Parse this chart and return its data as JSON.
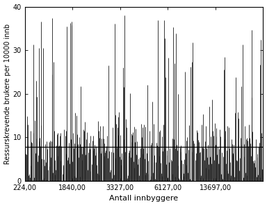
{
  "title": "",
  "xlabel": "Antall innbyggere",
  "ylabel": "Ressurskrevende brukere per 10000 innb",
  "xlim_data": [
    0,
    430
  ],
  "ylim": [
    0,
    40
  ],
  "yticks": [
    0,
    10,
    20,
    30,
    40
  ],
  "xtick_labels": [
    "224,00",
    "1840,00",
    "3327,00",
    "6127,00",
    "13697,00"
  ],
  "xtick_positions_idx": [
    0,
    86,
    172,
    258,
    344
  ],
  "hline_y": 7.8,
  "hline_color": "#000000",
  "bar_color": "#1a1a1a",
  "background_color": "#ffffff",
  "figsize": [
    3.84,
    2.96
  ],
  "dpi": 100,
  "seed": 12345,
  "n_municipalities": 430
}
